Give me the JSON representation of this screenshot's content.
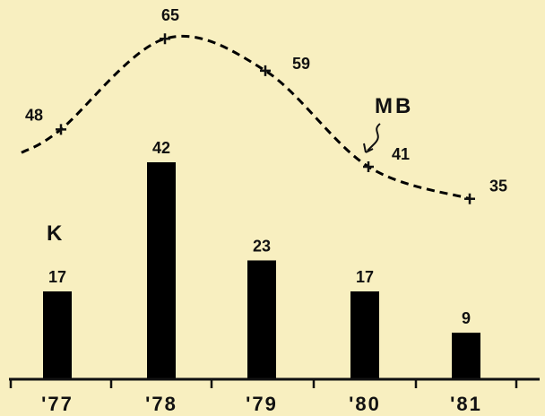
{
  "chart_data": [
    {
      "type": "bar",
      "series_label": "K",
      "categories": [
        "'77",
        "'78",
        "'79",
        "'80",
        "'81"
      ],
      "values": [
        17,
        42,
        23,
        17,
        9
      ],
      "data_labels": [
        "17",
        "42",
        "23",
        "17",
        "9"
      ],
      "bar_color": "#000000",
      "grid": false
    },
    {
      "type": "line",
      "series_label": "MB",
      "categories": [
        "'77",
        "'78",
        "'79",
        "'80",
        "'81"
      ],
      "values": [
        48,
        65,
        59,
        41,
        35
      ],
      "data_labels": [
        "48",
        "65",
        "59",
        "41",
        "35"
      ],
      "line_style": "dashed",
      "line_color": "#000000",
      "marker": "+",
      "grid": false
    }
  ],
  "colors": {
    "background": "#f8efc0",
    "ink": "#111111"
  }
}
